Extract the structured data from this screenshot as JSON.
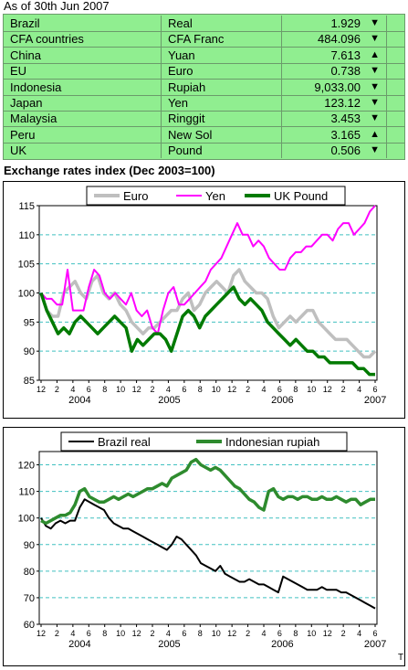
{
  "as_of": "As of 30th Jun 2007",
  "rates": [
    {
      "country": "Brazil",
      "currency": "Real",
      "value": "1.929",
      "arrow": "down"
    },
    {
      "country": "CFA countries",
      "currency": "CFA Franc",
      "value": "484.096",
      "arrow": "down"
    },
    {
      "country": "China",
      "currency": "Yuan",
      "value": "7.613",
      "arrow": "up"
    },
    {
      "country": "EU",
      "currency": "Euro",
      "value": "0.738",
      "arrow": "down"
    },
    {
      "country": "Indonesia",
      "currency": "Rupiah",
      "value": "9,033.00",
      "arrow": "down"
    },
    {
      "country": "Japan",
      "currency": "Yen",
      "value": "123.12",
      "arrow": "down"
    },
    {
      "country": "Malaysia",
      "currency": "Ringgit",
      "value": "3.453",
      "arrow": "down"
    },
    {
      "country": "Peru",
      "currency": "New Sol",
      "value": "3.165",
      "arrow": "up"
    },
    {
      "country": "UK",
      "currency": "Pound",
      "value": "0.506",
      "arrow": "down"
    }
  ],
  "index_title": "Exchange rates index (Dec 2003=100)",
  "colors": {
    "euro": "#bfbfbf",
    "yen": "#ff00ff",
    "pound": "#007a00",
    "real": "#000000",
    "rupiah": "#2e8b2e",
    "grid": "#40c0c0",
    "table_bg": "#90ee90"
  },
  "footer_mark": "T",
  "chart_data": [
    {
      "type": "line",
      "x_tick_labels": [
        "12",
        "2",
        "4",
        "6",
        "8",
        "10",
        "12",
        "2",
        "4",
        "6",
        "8",
        "10",
        "12",
        "2",
        "4",
        "6",
        "8",
        "10",
        "12",
        "2",
        "4",
        "6"
      ],
      "year_labels": [
        "2004",
        "2005",
        "2006",
        "2007"
      ],
      "ylim": [
        85,
        115
      ],
      "yticks": [
        85,
        90,
        95,
        100,
        105,
        110,
        115
      ],
      "grid": "horizontal dashed",
      "legend": "top",
      "series": [
        {
          "name": "Euro",
          "key": "euro",
          "values": [
            100,
            97,
            96,
            96,
            100,
            101,
            102,
            100,
            99,
            102,
            103,
            100,
            99,
            100,
            98,
            97,
            95,
            94,
            93,
            94,
            94,
            95,
            96,
            97,
            97,
            99,
            100,
            97,
            98,
            100,
            101,
            102,
            101,
            100,
            103,
            104,
            102,
            101,
            100,
            100,
            99,
            96,
            94,
            95,
            96,
            95,
            96,
            97,
            97,
            95,
            94,
            93,
            92,
            92,
            92,
            91,
            90,
            89,
            89,
            90
          ]
        },
        {
          "name": "Yen",
          "key": "yen",
          "values": [
            100,
            99,
            99,
            98,
            98,
            104,
            97,
            97,
            97,
            101,
            104,
            103,
            100,
            99,
            100,
            99,
            98,
            100,
            97,
            96,
            97,
            94,
            93,
            97,
            100,
            101,
            98,
            98,
            99,
            100,
            101,
            102,
            104,
            105,
            106,
            108,
            110,
            112,
            110,
            110,
            108,
            109,
            108,
            106,
            105,
            104,
            104,
            106,
            107,
            107,
            108,
            108,
            109,
            110,
            110,
            109,
            111,
            112,
            112,
            110,
            111,
            112,
            114,
            115
          ]
        },
        {
          "name": "UK Pound",
          "key": "pound",
          "values": [
            100,
            97,
            95,
            93,
            94,
            93,
            95,
            96,
            95,
            94,
            93,
            94,
            95,
            96,
            95,
            94,
            90,
            92,
            91,
            92,
            93,
            93,
            92,
            90,
            93,
            96,
            97,
            96,
            94,
            96,
            97,
            98,
            99,
            100,
            101,
            99,
            98,
            99,
            98,
            97,
            95,
            94,
            93,
            92,
            91,
            92,
            91,
            90,
            90,
            89,
            89,
            88,
            88,
            88,
            88,
            88,
            87,
            87,
            86,
            86
          ]
        }
      ]
    },
    {
      "type": "line",
      "x_tick_labels": [
        "12",
        "2",
        "4",
        "6",
        "8",
        "10",
        "12",
        "2",
        "4",
        "6",
        "8",
        "10",
        "12",
        "2",
        "4",
        "6",
        "8",
        "10",
        "12",
        "2",
        "4",
        "6"
      ],
      "year_labels": [
        "2004",
        "2005",
        "2006",
        "2007"
      ],
      "ylim": [
        60,
        125
      ],
      "yticks": [
        60,
        70,
        80,
        90,
        100,
        110,
        120
      ],
      "grid": "horizontal dashed",
      "legend": "top",
      "series": [
        {
          "name": "Brazil real",
          "key": "real",
          "values": [
            100,
            97,
            96,
            98,
            99,
            98,
            99,
            99,
            104,
            107,
            106,
            105,
            104,
            103,
            100,
            98,
            97,
            96,
            96,
            95,
            94,
            93,
            92,
            91,
            90,
            89,
            88,
            90,
            93,
            92,
            90,
            88,
            86,
            83,
            82,
            81,
            80,
            82,
            79,
            78,
            77,
            76,
            76,
            77,
            76,
            75,
            75,
            74,
            73,
            72,
            78,
            77,
            76,
            75,
            74,
            73,
            73,
            73,
            74,
            73,
            73,
            73,
            72,
            72,
            71,
            70,
            69,
            68,
            67,
            66
          ]
        },
        {
          "name": "Indonesian rupiah",
          "key": "rupiah",
          "values": [
            99,
            98,
            99,
            100,
            101,
            101,
            102,
            105,
            110,
            111,
            108,
            107,
            106,
            106,
            107,
            108,
            107,
            108,
            109,
            108,
            109,
            110,
            111,
            111,
            112,
            113,
            112,
            115,
            116,
            117,
            118,
            121,
            122,
            120,
            119,
            118,
            119,
            118,
            116,
            114,
            112,
            111,
            109,
            107,
            106,
            104,
            103,
            110,
            111,
            108,
            107,
            108,
            108,
            107,
            108,
            108,
            107,
            107,
            108,
            107,
            107,
            108,
            107,
            106,
            107,
            107,
            105,
            106,
            107,
            107
          ]
        }
      ]
    }
  ]
}
